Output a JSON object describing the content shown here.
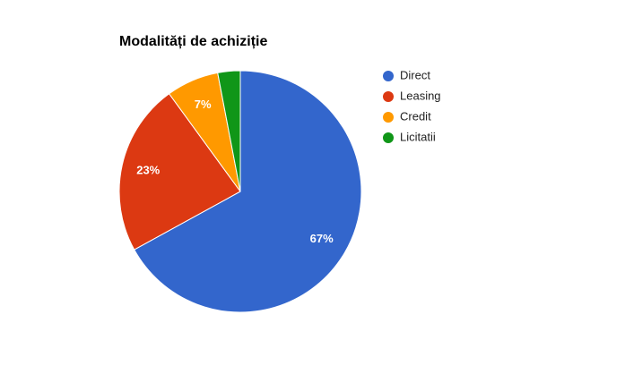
{
  "chart_data": {
    "type": "pie",
    "title": "Modalități de achiziție",
    "categories": [
      "Direct",
      "Leasing",
      "Credit",
      "Licitatii"
    ],
    "values": [
      67,
      23,
      7,
      3
    ],
    "value_labels": [
      "67%",
      "23%",
      "7%",
      null
    ],
    "colors": [
      "#3366cc",
      "#dc3912",
      "#ff9900",
      "#109618"
    ],
    "legend": "right"
  }
}
